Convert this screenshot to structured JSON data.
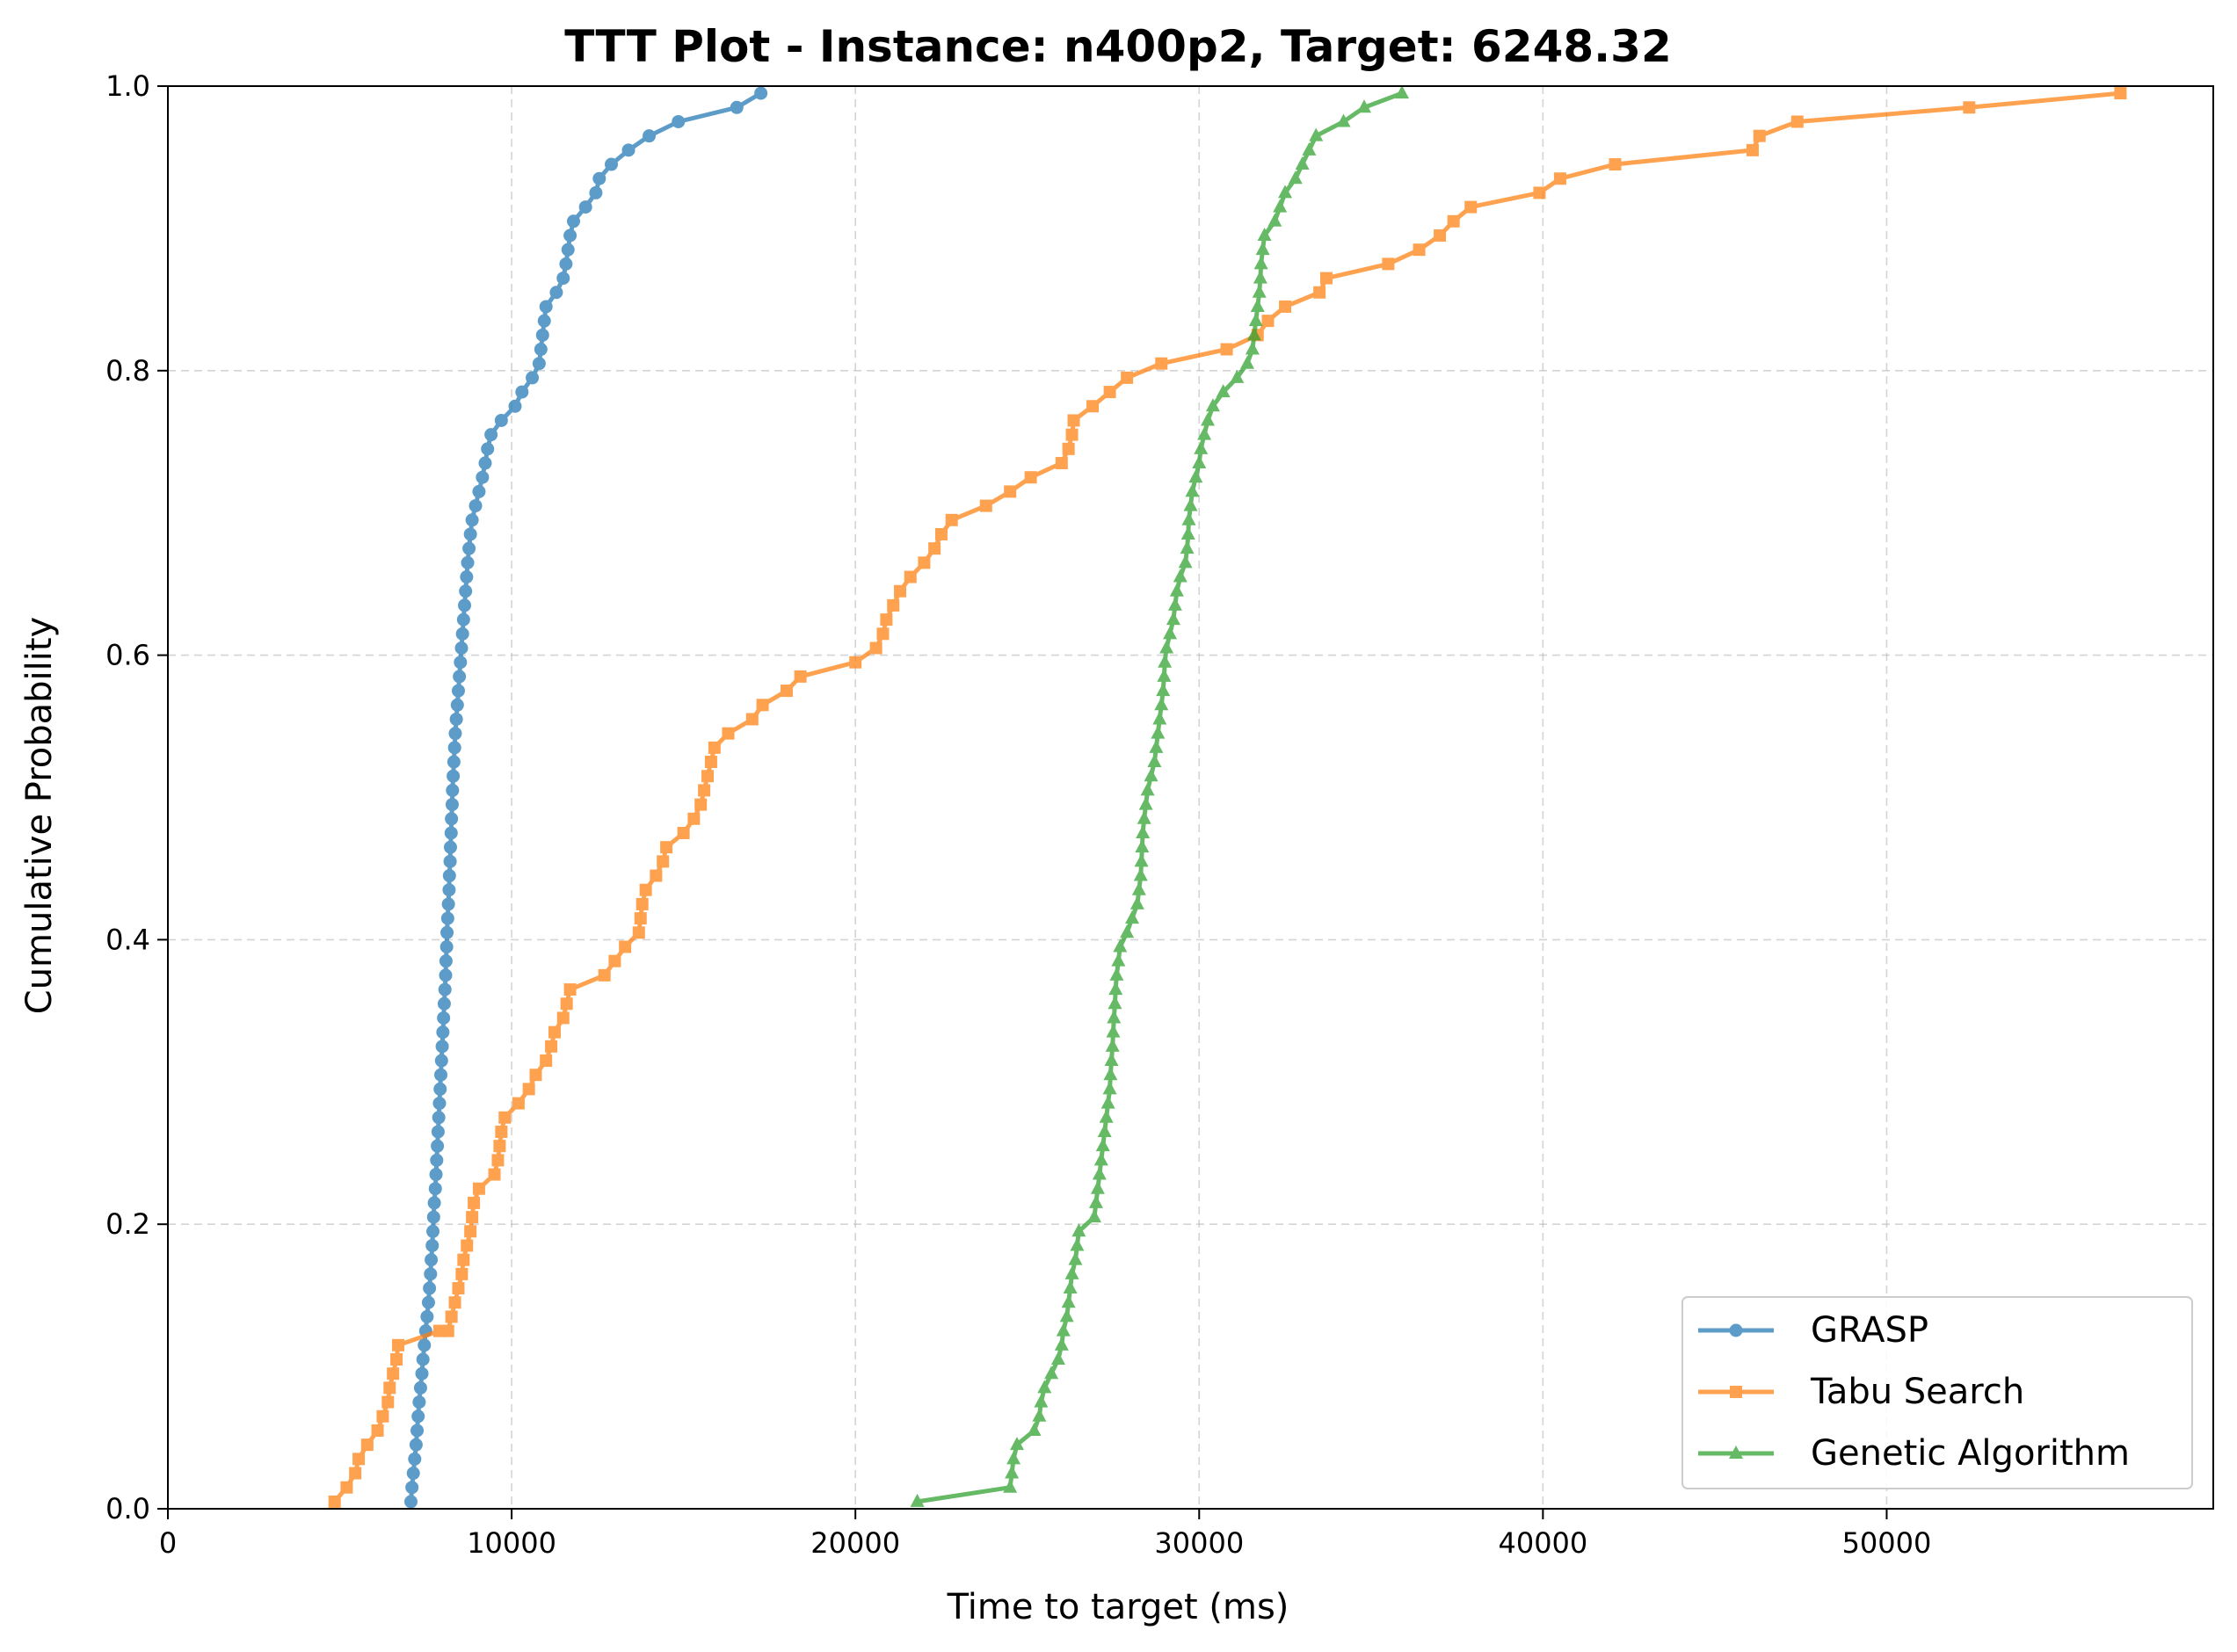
{
  "chart_data": {
    "type": "line",
    "title": "TTT Plot - Instance: n400p2, Target: 6248.32",
    "xlabel": "Time to target (ms)",
    "ylabel": "Cumulative Probability",
    "xlim": [
      0,
      59500
    ],
    "ylim": [
      0,
      1
    ],
    "xticks": [
      0,
      10000,
      20000,
      30000,
      40000,
      50000
    ],
    "xtick_labels": [
      "0",
      "10000",
      "20000",
      "30000",
      "40000",
      "50000"
    ],
    "yticks": [
      0,
      0.2,
      0.4,
      0.6,
      0.8,
      1.0
    ],
    "ytick_labels": [
      "0.0",
      "0.2",
      "0.4",
      "0.6",
      "0.8",
      "1.0"
    ],
    "grid": true,
    "legend_position": "lower right",
    "series": [
      {
        "name": "GRASP",
        "color": "#1f77b4",
        "marker": "circle",
        "points": [
          [
            7070,
            0.005
          ],
          [
            7100,
            0.015
          ],
          [
            7140,
            0.025
          ],
          [
            7180,
            0.035
          ],
          [
            7220,
            0.045
          ],
          [
            7250,
            0.055
          ],
          [
            7280,
            0.065
          ],
          [
            7310,
            0.075
          ],
          [
            7350,
            0.085
          ],
          [
            7390,
            0.095
          ],
          [
            7420,
            0.105
          ],
          [
            7460,
            0.115
          ],
          [
            7500,
            0.125
          ],
          [
            7540,
            0.135
          ],
          [
            7580,
            0.145
          ],
          [
            7610,
            0.155
          ],
          [
            7640,
            0.165
          ],
          [
            7660,
            0.175
          ],
          [
            7690,
            0.185
          ],
          [
            7710,
            0.195
          ],
          [
            7730,
            0.205
          ],
          [
            7750,
            0.215
          ],
          [
            7780,
            0.225
          ],
          [
            7800,
            0.235
          ],
          [
            7820,
            0.245
          ],
          [
            7840,
            0.255
          ],
          [
            7860,
            0.265
          ],
          [
            7880,
            0.275
          ],
          [
            7900,
            0.285
          ],
          [
            7920,
            0.295
          ],
          [
            7940,
            0.305
          ],
          [
            7960,
            0.315
          ],
          [
            7980,
            0.325
          ],
          [
            8000,
            0.335
          ],
          [
            8020,
            0.345
          ],
          [
            8040,
            0.355
          ],
          [
            8060,
            0.365
          ],
          [
            8080,
            0.375
          ],
          [
            8090,
            0.385
          ],
          [
            8110,
            0.395
          ],
          [
            8120,
            0.405
          ],
          [
            8140,
            0.415
          ],
          [
            8160,
            0.425
          ],
          [
            8180,
            0.435
          ],
          [
            8190,
            0.445
          ],
          [
            8210,
            0.455
          ],
          [
            8220,
            0.465
          ],
          [
            8240,
            0.475
          ],
          [
            8250,
            0.485
          ],
          [
            8270,
            0.495
          ],
          [
            8280,
            0.505
          ],
          [
            8300,
            0.515
          ],
          [
            8320,
            0.525
          ],
          [
            8340,
            0.535
          ],
          [
            8360,
            0.545
          ],
          [
            8390,
            0.555
          ],
          [
            8420,
            0.565
          ],
          [
            8450,
            0.575
          ],
          [
            8480,
            0.585
          ],
          [
            8510,
            0.595
          ],
          [
            8540,
            0.605
          ],
          [
            8570,
            0.615
          ],
          [
            8600,
            0.625
          ],
          [
            8630,
            0.635
          ],
          [
            8660,
            0.645
          ],
          [
            8690,
            0.655
          ],
          [
            8720,
            0.665
          ],
          [
            8760,
            0.675
          ],
          [
            8800,
            0.685
          ],
          [
            8850,
            0.695
          ],
          [
            8950,
            0.705
          ],
          [
            9050,
            0.715
          ],
          [
            9150,
            0.725
          ],
          [
            9230,
            0.735
          ],
          [
            9300,
            0.745
          ],
          [
            9400,
            0.755
          ],
          [
            9700,
            0.765
          ],
          [
            10100,
            0.775
          ],
          [
            10300,
            0.785
          ],
          [
            10600,
            0.795
          ],
          [
            10800,
            0.805
          ],
          [
            10850,
            0.815
          ],
          [
            10900,
            0.825
          ],
          [
            10950,
            0.835
          ],
          [
            11000,
            0.845
          ],
          [
            11300,
            0.855
          ],
          [
            11500,
            0.865
          ],
          [
            11580,
            0.875
          ],
          [
            11640,
            0.885
          ],
          [
            11700,
            0.895
          ],
          [
            11800,
            0.905
          ],
          [
            12150,
            0.915
          ],
          [
            12450,
            0.925
          ],
          [
            12550,
            0.935
          ],
          [
            12900,
            0.945
          ],
          [
            13400,
            0.955
          ],
          [
            14000,
            0.965
          ],
          [
            14850,
            0.975
          ],
          [
            16550,
            0.985
          ],
          [
            17250,
            0.995
          ]
        ]
      },
      {
        "name": "Tabu Search",
        "color": "#ff7f0e",
        "marker": "square",
        "points": [
          [
            4850,
            0.005
          ],
          [
            5200,
            0.015
          ],
          [
            5450,
            0.025
          ],
          [
            5550,
            0.035
          ],
          [
            5800,
            0.045
          ],
          [
            6100,
            0.055
          ],
          [
            6250,
            0.065
          ],
          [
            6400,
            0.075
          ],
          [
            6450,
            0.085
          ],
          [
            6550,
            0.095
          ],
          [
            6650,
            0.105
          ],
          [
            6700,
            0.115
          ],
          [
            7900,
            0.125
          ],
          [
            8150,
            0.125
          ],
          [
            8250,
            0.135
          ],
          [
            8350,
            0.145
          ],
          [
            8450,
            0.155
          ],
          [
            8550,
            0.165
          ],
          [
            8600,
            0.175
          ],
          [
            8700,
            0.185
          ],
          [
            8800,
            0.195
          ],
          [
            8850,
            0.205
          ],
          [
            8900,
            0.215
          ],
          [
            9050,
            0.225
          ],
          [
            9500,
            0.235
          ],
          [
            9600,
            0.245
          ],
          [
            9650,
            0.255
          ],
          [
            9700,
            0.265
          ],
          [
            9800,
            0.275
          ],
          [
            10200,
            0.285
          ],
          [
            10500,
            0.295
          ],
          [
            10700,
            0.305
          ],
          [
            11000,
            0.315
          ],
          [
            11150,
            0.325
          ],
          [
            11250,
            0.335
          ],
          [
            11500,
            0.345
          ],
          [
            11600,
            0.355
          ],
          [
            11700,
            0.365
          ],
          [
            12700,
            0.375
          ],
          [
            13000,
            0.385
          ],
          [
            13300,
            0.395
          ],
          [
            13700,
            0.405
          ],
          [
            13750,
            0.415
          ],
          [
            13800,
            0.425
          ],
          [
            13900,
            0.435
          ],
          [
            14200,
            0.445
          ],
          [
            14400,
            0.455
          ],
          [
            14500,
            0.465
          ],
          [
            15000,
            0.475
          ],
          [
            15300,
            0.485
          ],
          [
            15500,
            0.495
          ],
          [
            15600,
            0.505
          ],
          [
            15700,
            0.515
          ],
          [
            15800,
            0.525
          ],
          [
            15900,
            0.535
          ],
          [
            16300,
            0.545
          ],
          [
            17000,
            0.555
          ],
          [
            17300,
            0.565
          ],
          [
            18000,
            0.575
          ],
          [
            18400,
            0.585
          ],
          [
            20000,
            0.595
          ],
          [
            20600,
            0.605
          ],
          [
            20800,
            0.615
          ],
          [
            20900,
            0.625
          ],
          [
            21100,
            0.635
          ],
          [
            21300,
            0.645
          ],
          [
            21600,
            0.655
          ],
          [
            22000,
            0.665
          ],
          [
            22300,
            0.675
          ],
          [
            22500,
            0.685
          ],
          [
            22800,
            0.695
          ],
          [
            23800,
            0.705
          ],
          [
            24500,
            0.715
          ],
          [
            25100,
            0.725
          ],
          [
            26000,
            0.735
          ],
          [
            26200,
            0.745
          ],
          [
            26300,
            0.755
          ],
          [
            26350,
            0.765
          ],
          [
            26900,
            0.775
          ],
          [
            27400,
            0.785
          ],
          [
            27900,
            0.795
          ],
          [
            28900,
            0.805
          ],
          [
            30800,
            0.815
          ],
          [
            31700,
            0.825
          ],
          [
            32000,
            0.835
          ],
          [
            32500,
            0.845
          ],
          [
            33500,
            0.855
          ],
          [
            33700,
            0.865
          ],
          [
            35500,
            0.875
          ],
          [
            36400,
            0.885
          ],
          [
            37000,
            0.895
          ],
          [
            37400,
            0.905
          ],
          [
            37900,
            0.915
          ],
          [
            39900,
            0.925
          ],
          [
            40500,
            0.935
          ],
          [
            42100,
            0.945
          ],
          [
            46100,
            0.955
          ],
          [
            46300,
            0.965
          ],
          [
            47400,
            0.975
          ],
          [
            52400,
            0.985
          ],
          [
            56800,
            0.995
          ]
        ]
      },
      {
        "name": "Genetic Algorithm",
        "color": "#2ca02c",
        "marker": "triangle",
        "points": [
          [
            21800,
            0.005
          ],
          [
            24500,
            0.015
          ],
          [
            24550,
            0.025
          ],
          [
            24600,
            0.035
          ],
          [
            24700,
            0.045
          ],
          [
            25200,
            0.055
          ],
          [
            25350,
            0.065
          ],
          [
            25400,
            0.075
          ],
          [
            25500,
            0.085
          ],
          [
            25700,
            0.095
          ],
          [
            25900,
            0.105
          ],
          [
            26000,
            0.115
          ],
          [
            26050,
            0.125
          ],
          [
            26150,
            0.135
          ],
          [
            26200,
            0.145
          ],
          [
            26250,
            0.155
          ],
          [
            26300,
            0.165
          ],
          [
            26400,
            0.175
          ],
          [
            26450,
            0.185
          ],
          [
            26500,
            0.195
          ],
          [
            26950,
            0.205
          ],
          [
            27000,
            0.215
          ],
          [
            27050,
            0.225
          ],
          [
            27100,
            0.235
          ],
          [
            27150,
            0.245
          ],
          [
            27200,
            0.255
          ],
          [
            27250,
            0.265
          ],
          [
            27300,
            0.275
          ],
          [
            27350,
            0.285
          ],
          [
            27400,
            0.295
          ],
          [
            27420,
            0.305
          ],
          [
            27450,
            0.315
          ],
          [
            27480,
            0.325
          ],
          [
            27500,
            0.335
          ],
          [
            27520,
            0.345
          ],
          [
            27550,
            0.355
          ],
          [
            27570,
            0.365
          ],
          [
            27600,
            0.375
          ],
          [
            27650,
            0.385
          ],
          [
            27700,
            0.395
          ],
          [
            27900,
            0.405
          ],
          [
            28050,
            0.415
          ],
          [
            28200,
            0.425
          ],
          [
            28250,
            0.435
          ],
          [
            28300,
            0.445
          ],
          [
            28320,
            0.455
          ],
          [
            28340,
            0.465
          ],
          [
            28360,
            0.475
          ],
          [
            28400,
            0.485
          ],
          [
            28450,
            0.495
          ],
          [
            28500,
            0.505
          ],
          [
            28600,
            0.515
          ],
          [
            28700,
            0.525
          ],
          [
            28750,
            0.535
          ],
          [
            28800,
            0.545
          ],
          [
            28850,
            0.555
          ],
          [
            28900,
            0.565
          ],
          [
            28950,
            0.575
          ],
          [
            28980,
            0.585
          ],
          [
            29000,
            0.595
          ],
          [
            29050,
            0.605
          ],
          [
            29150,
            0.615
          ],
          [
            29250,
            0.625
          ],
          [
            29300,
            0.635
          ],
          [
            29350,
            0.645
          ],
          [
            29450,
            0.655
          ],
          [
            29600,
            0.665
          ],
          [
            29650,
            0.675
          ],
          [
            29680,
            0.685
          ],
          [
            29700,
            0.695
          ],
          [
            29750,
            0.705
          ],
          [
            29800,
            0.715
          ],
          [
            29900,
            0.725
          ],
          [
            30000,
            0.735
          ],
          [
            30050,
            0.745
          ],
          [
            30150,
            0.755
          ],
          [
            30250,
            0.765
          ],
          [
            30400,
            0.775
          ],
          [
            30700,
            0.785
          ],
          [
            31100,
            0.795
          ],
          [
            31400,
            0.805
          ],
          [
            31550,
            0.815
          ],
          [
            31600,
            0.825
          ],
          [
            31650,
            0.835
          ],
          [
            31700,
            0.845
          ],
          [
            31750,
            0.855
          ],
          [
            31780,
            0.865
          ],
          [
            31800,
            0.875
          ],
          [
            31850,
            0.885
          ],
          [
            31900,
            0.895
          ],
          [
            32200,
            0.905
          ],
          [
            32350,
            0.915
          ],
          [
            32500,
            0.925
          ],
          [
            32800,
            0.935
          ],
          [
            33000,
            0.945
          ],
          [
            33200,
            0.955
          ],
          [
            33400,
            0.965
          ],
          [
            34200,
            0.975
          ],
          [
            34800,
            0.985
          ],
          [
            35900,
            0.995
          ]
        ]
      }
    ]
  }
}
